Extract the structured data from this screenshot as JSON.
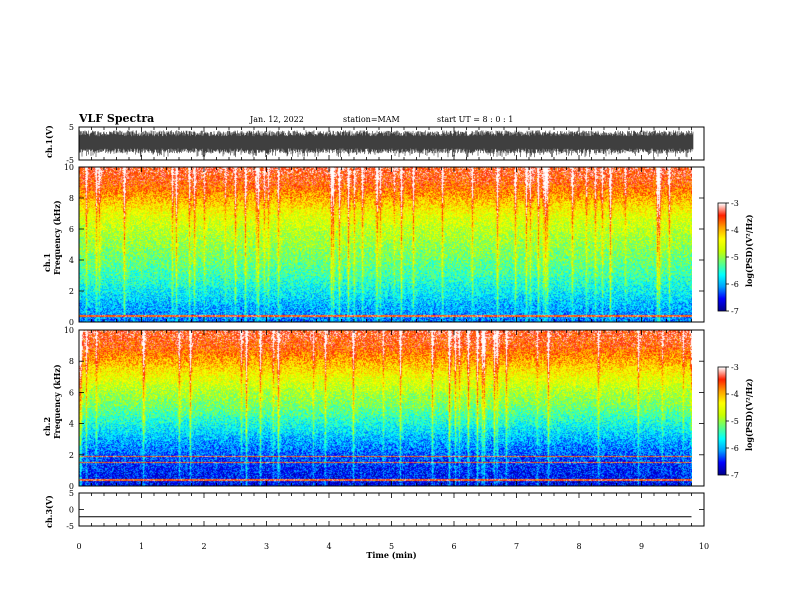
{
  "header": {
    "title": "VLF Spectra",
    "date": "Jan. 12, 2022",
    "station": "station=MAM",
    "start": "start UT =  8 : 0 : 1"
  },
  "colors": {
    "colormap": [
      "#00008f",
      "#0000ff",
      "#00a0ff",
      "#00ffff",
      "#60ff80",
      "#c8ff00",
      "#ffff00",
      "#ffa000",
      "#ff2000",
      "#ffffff"
    ]
  },
  "chart_data": [
    {
      "type": "line",
      "name": "ch1-waveform",
      "ylabel": "ch.1(V)",
      "ylim": [
        -5,
        5
      ],
      "yticks": [
        "5",
        "-5"
      ],
      "xlim": [
        0,
        10
      ],
      "description_values": "broadband noise filling approx. -3 to +4 V"
    },
    {
      "type": "heatmap",
      "name": "ch1-spectrogram",
      "ylabel": "ch.1\nFrequency (kHz)",
      "xlim": [
        0,
        10
      ],
      "ylim": [
        0,
        10
      ],
      "yticks": [
        "0",
        "2",
        "4",
        "6",
        "8",
        "10"
      ],
      "data_end_min": 9.8,
      "colorbar": {
        "label": "log(PSD)(V²/Hz)",
        "range": [
          -7,
          -3
        ],
        "ticks": [
          "-3",
          "-4",
          "-5",
          "-6",
          "-7"
        ]
      },
      "band_profile_khz": [
        0,
        1,
        2,
        3,
        4,
        5,
        6,
        7,
        8,
        9,
        10
      ],
      "band_profile_logpsd": [
        -6.2,
        -6.0,
        -5.7,
        -5.4,
        -5.2,
        -5.0,
        -4.8,
        -4.5,
        -4.0,
        -3.6,
        -3.4
      ]
    },
    {
      "type": "heatmap",
      "name": "ch2-spectrogram",
      "ylabel": "ch.2\nFrequency (kHz)",
      "xlim": [
        0,
        10
      ],
      "ylim": [
        0,
        10
      ],
      "yticks": [
        "0",
        "2",
        "4",
        "6",
        "8",
        "10"
      ],
      "data_end_min": 9.8,
      "colorbar": {
        "label": "log(PSD)(V²/Hz)",
        "range": [
          -7,
          -3
        ],
        "ticks": [
          "-3",
          "-4",
          "-5",
          "-6",
          "-7"
        ]
      },
      "band_profile_khz": [
        0,
        1,
        2,
        3,
        4,
        5,
        6,
        7,
        8,
        9,
        10
      ],
      "band_profile_logpsd": [
        -6.6,
        -6.5,
        -6.3,
        -6.0,
        -5.6,
        -5.2,
        -4.9,
        -4.5,
        -4.0,
        -3.6,
        -3.4
      ]
    },
    {
      "type": "line",
      "name": "ch3-waveform",
      "ylabel": "ch.3(V)",
      "ylim": [
        -5,
        5
      ],
      "yticks": [
        "5",
        "0",
        "-5"
      ],
      "x": [
        0,
        9.8
      ],
      "y": [
        -2.2,
        -2.2
      ],
      "xlabel": "Time (min)",
      "xlim": [
        0,
        10
      ],
      "xticks": [
        "0",
        "1",
        "2",
        "3",
        "4",
        "5",
        "6",
        "7",
        "8",
        "9",
        "10"
      ]
    }
  ]
}
